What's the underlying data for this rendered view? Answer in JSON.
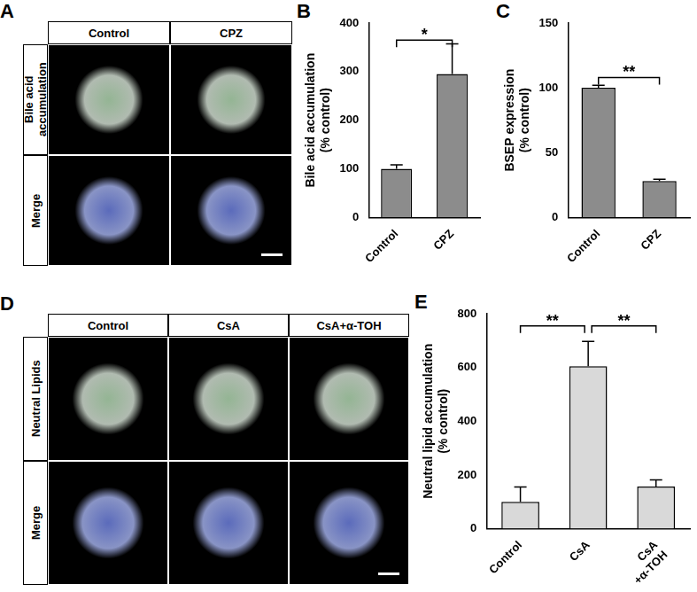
{
  "panels": [
    {
      "label": "A",
      "columns": [
        "Control",
        "CPZ"
      ],
      "rows": [
        "Bile acid accumulation",
        "Merge"
      ]
    },
    {
      "label": "D",
      "columns": [
        "Control",
        "CsA",
        "CsA+α-TOH"
      ],
      "rows": [
        "Neutral Lipids",
        "Merge"
      ]
    }
  ],
  "chart_data": [
    {
      "panel": "B",
      "type": "bar",
      "y_label": [
        "Bile acid accumulation",
        "(% control)"
      ],
      "categories": [
        "Control",
        "CPZ"
      ],
      "values": [
        100,
        295
      ],
      "errors": [
        8,
        62
      ],
      "color": "#8c8c8c",
      "ylim": [
        0,
        400
      ],
      "yticks": [
        0,
        100,
        200,
        300,
        400
      ],
      "significance": [
        {
          "from": 0,
          "to": 1,
          "y": 365,
          "label": "*"
        }
      ]
    },
    {
      "panel": "C",
      "type": "bar",
      "y_label": [
        "BSEP expression",
        "(% control)"
      ],
      "categories": [
        "Control",
        "CPZ"
      ],
      "values": [
        100,
        28
      ],
      "errors": [
        2,
        1.5
      ],
      "color": "#8c8c8c",
      "ylim": [
        0,
        150
      ],
      "yticks": [
        0,
        50,
        100,
        150
      ],
      "significance": [
        {
          "from": 0,
          "to": 1,
          "y": 108,
          "label": "**"
        }
      ]
    },
    {
      "panel": "E",
      "type": "bar",
      "y_label": [
        "Neutral lipid accumulation",
        "(% control)"
      ],
      "categories": [
        "Control",
        "CsA",
        [
          "CsA",
          "+α-TOH"
        ]
      ],
      "values": [
        100,
        605,
        157
      ],
      "errors": [
        55,
        92,
        25
      ],
      "color": "#d9d9d9",
      "ylim": [
        0,
        800
      ],
      "yticks": [
        0,
        200,
        400,
        600,
        800
      ],
      "significance": [
        {
          "from": 0,
          "to": 1,
          "y": 755,
          "label": "**"
        },
        {
          "from": 1,
          "to": 2,
          "y": 755,
          "label": "**"
        }
      ]
    }
  ]
}
